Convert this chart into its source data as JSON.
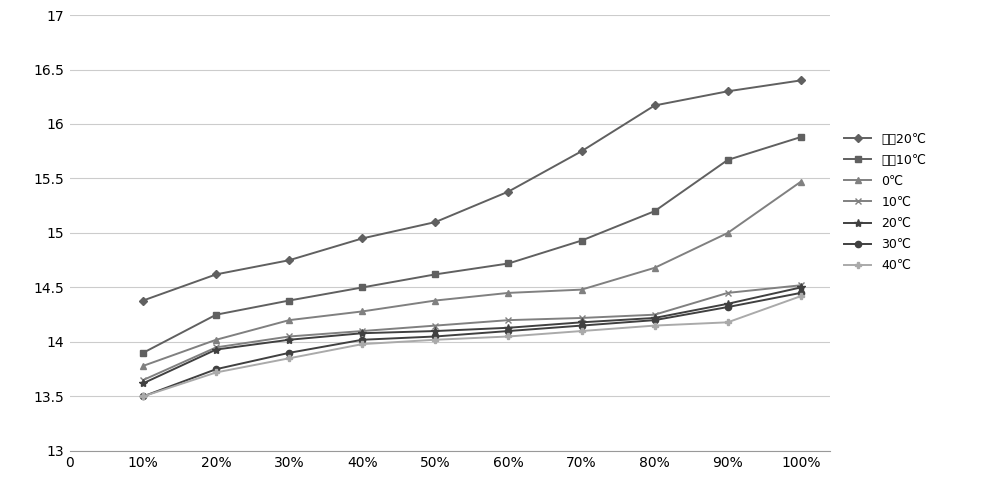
{
  "x_values": [
    10,
    20,
    30,
    40,
    50,
    60,
    70,
    80,
    90,
    100
  ],
  "series": [
    {
      "label": "零下20℃",
      "marker": "D",
      "color": "#606060",
      "linewidth": 1.4,
      "markersize": 4.5,
      "data": [
        14.38,
        14.62,
        14.75,
        14.95,
        15.1,
        15.38,
        15.75,
        16.17,
        16.3,
        16.4
      ]
    },
    {
      "label": "零下10℃",
      "marker": "s",
      "color": "#606060",
      "linewidth": 1.4,
      "markersize": 4.5,
      "data": [
        13.9,
        14.25,
        14.38,
        14.5,
        14.62,
        14.72,
        14.93,
        15.2,
        15.67,
        15.88
      ]
    },
    {
      "label": "0℃",
      "marker": "^",
      "color": "#808080",
      "linewidth": 1.4,
      "markersize": 4.5,
      "data": [
        13.78,
        14.02,
        14.2,
        14.28,
        14.38,
        14.45,
        14.48,
        14.68,
        15.0,
        15.47
      ]
    },
    {
      "label": "10℃",
      "marker": "x",
      "color": "#808080",
      "linewidth": 1.4,
      "markersize": 5,
      "data": [
        13.65,
        13.95,
        14.05,
        14.1,
        14.15,
        14.2,
        14.22,
        14.25,
        14.45,
        14.52
      ]
    },
    {
      "label": "20℃",
      "marker": "*",
      "color": "#404040",
      "linewidth": 1.4,
      "markersize": 6,
      "data": [
        13.62,
        13.93,
        14.02,
        14.08,
        14.1,
        14.13,
        14.18,
        14.22,
        14.35,
        14.5
      ]
    },
    {
      "label": "30℃",
      "marker": "o",
      "color": "#404040",
      "linewidth": 1.4,
      "markersize": 4.5,
      "data": [
        13.5,
        13.75,
        13.9,
        14.02,
        14.05,
        14.1,
        14.15,
        14.2,
        14.32,
        14.45
      ]
    },
    {
      "label": "40℃",
      "marker": "P",
      "color": "#aaaaaa",
      "linewidth": 1.4,
      "markersize": 4.5,
      "data": [
        13.5,
        13.72,
        13.85,
        13.98,
        14.02,
        14.05,
        14.1,
        14.15,
        14.18,
        14.42
      ]
    }
  ],
  "xlim": [
    0,
    104
  ],
  "ylim": [
    13,
    17
  ],
  "yticks": [
    13,
    13.5,
    14,
    14.5,
    15,
    15.5,
    16,
    16.5,
    17
  ],
  "ytick_labels": [
    "13",
    "13.5",
    "14",
    "14.5",
    "15",
    "15.5",
    "16",
    "16.5",
    "17"
  ],
  "xticks": [
    0,
    10,
    20,
    30,
    40,
    50,
    60,
    70,
    80,
    90,
    100
  ],
  "x_tick_labels": [
    "0",
    "10%",
    "20%",
    "30%",
    "40%",
    "50%",
    "60%",
    "70%",
    "80%",
    "90%",
    "100%"
  ],
  "grid_color": "#cccccc",
  "bg_color": "#ffffff",
  "legend_fontsize": 9,
  "tick_fontsize": 10,
  "figure_width": 10.0,
  "figure_height": 5.01
}
